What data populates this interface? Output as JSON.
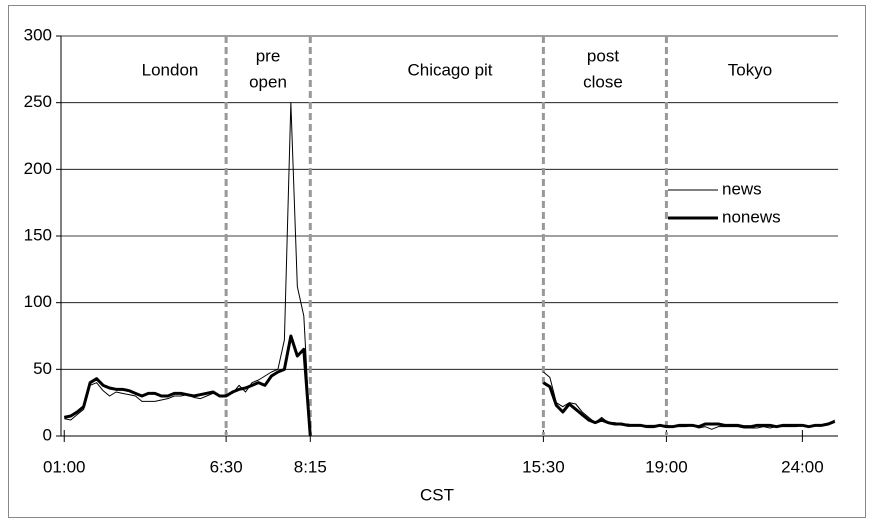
{
  "chart_data": {
    "type": "line",
    "x_label": "CST",
    "sessions": [
      [
        "London"
      ],
      [
        "pre",
        "open"
      ],
      [
        "Chicago pit"
      ],
      [
        "post",
        "close"
      ],
      [
        "Tokyo"
      ]
    ],
    "categories": [
      "01:00",
      null,
      null,
      null,
      null,
      null,
      null,
      null,
      null,
      null,
      null,
      null,
      null,
      null,
      null,
      null,
      null,
      null,
      null,
      null,
      null,
      null,
      null,
      null,
      null,
      "6:30",
      null,
      null,
      null,
      null,
      null,
      null,
      null,
      null,
      null,
      null,
      null,
      null,
      "8:15",
      null,
      null,
      null,
      null,
      null,
      null,
      null,
      null,
      null,
      null,
      null,
      null,
      null,
      null,
      null,
      null,
      null,
      null,
      null,
      null,
      null,
      null,
      null,
      null,
      null,
      null,
      null,
      null,
      null,
      null,
      null,
      null,
      null,
      null,
      null,
      "15:30",
      null,
      null,
      null,
      null,
      null,
      null,
      null,
      null,
      null,
      null,
      null,
      null,
      null,
      null,
      null,
      null,
      null,
      null,
      "19:00",
      null,
      null,
      null,
      null,
      null,
      null,
      null,
      null,
      null,
      null,
      null,
      null,
      null,
      null,
      null,
      null,
      null,
      null,
      null,
      null,
      "24:00",
      null,
      null,
      null,
      null,
      null
    ],
    "series": [
      {
        "name": "news",
        "color": "#000000",
        "line_width": 1,
        "values": [
          13,
          12,
          16,
          20,
          38,
          40,
          34,
          30,
          33,
          32,
          31,
          30,
          26,
          26,
          26,
          27,
          28,
          30,
          30,
          31,
          29,
          28,
          30,
          32,
          30,
          31,
          32,
          38,
          33,
          40,
          42,
          45,
          48,
          50,
          72,
          250,
          112,
          90,
          0,
          null,
          null,
          null,
          null,
          null,
          null,
          null,
          null,
          null,
          null,
          null,
          null,
          null,
          null,
          null,
          null,
          null,
          null,
          null,
          null,
          null,
          null,
          null,
          null,
          null,
          null,
          null,
          null,
          null,
          null,
          null,
          null,
          null,
          null,
          null,
          48,
          44,
          25,
          22,
          25,
          24,
          18,
          14,
          10,
          14,
          10,
          10,
          9,
          9,
          8,
          8,
          8,
          8,
          8,
          8,
          7,
          7,
          7,
          8,
          6,
          7,
          5,
          7,
          7,
          7,
          7,
          6,
          6,
          6,
          7,
          6,
          7,
          7,
          7,
          7,
          8,
          7,
          8,
          8,
          9,
          12
        ]
      },
      {
        "name": "nonews",
        "color": "#000000",
        "line_width": 3,
        "values": [
          14,
          15,
          18,
          22,
          40,
          43,
          38,
          36,
          35,
          35,
          34,
          32,
          30,
          32,
          32,
          30,
          30,
          32,
          32,
          31,
          30,
          31,
          32,
          33,
          30,
          30,
          33,
          35,
          36,
          38,
          40,
          38,
          45,
          48,
          50,
          75,
          60,
          65,
          0,
          null,
          null,
          null,
          null,
          null,
          null,
          null,
          null,
          null,
          null,
          null,
          null,
          null,
          null,
          null,
          null,
          null,
          null,
          null,
          null,
          null,
          null,
          null,
          null,
          null,
          null,
          null,
          null,
          null,
          null,
          null,
          null,
          null,
          null,
          null,
          40,
          37,
          23,
          18,
          24,
          20,
          16,
          12,
          10,
          12,
          10,
          9,
          9,
          8,
          8,
          8,
          7,
          7,
          8,
          7,
          7,
          8,
          8,
          8,
          7,
          9,
          9,
          9,
          8,
          8,
          8,
          7,
          7,
          8,
          8,
          8,
          7,
          8,
          8,
          8,
          8,
          7,
          8,
          8,
          9,
          11
        ]
      }
    ],
    "ylim": [
      0,
      300
    ],
    "yticks": [
      0,
      50,
      100,
      150,
      200,
      250,
      300
    ],
    "grid": true
  }
}
